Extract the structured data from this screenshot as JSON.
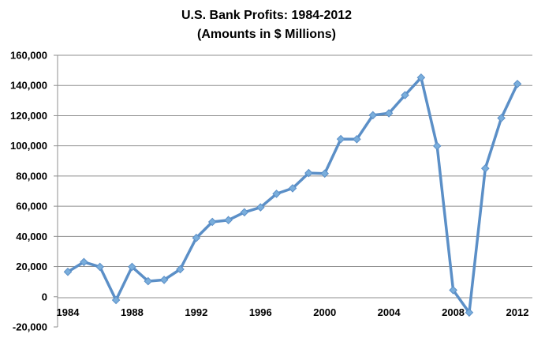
{
  "chart_data": {
    "type": "line",
    "title": "U.S. Bank Profits: 1984-2012",
    "subtitle": "(Amounts in $ Millions)",
    "xlabel": "",
    "ylabel": "",
    "x_tick_labels": [
      "1984",
      "1988",
      "1992",
      "1996",
      "2000",
      "2004",
      "2008",
      "2012"
    ],
    "y_tick_labels": [
      "160,000",
      "140,000",
      "120,000",
      "100,000",
      "80,000",
      "60,000",
      "40,000",
      "20,000",
      "0",
      "-20,000"
    ],
    "ylim": [
      -20000,
      160000
    ],
    "xlim": [
      1984,
      2012
    ],
    "grid": true,
    "legend": "none",
    "series": [
      {
        "color": "#5b8fc7",
        "marker_color": "#7aaedc",
        "x": [
          1984,
          1985,
          1986,
          1987,
          1988,
          1989,
          1990,
          1991,
          1992,
          1993,
          1994,
          1995,
          1996,
          1997,
          1998,
          1999,
          2000,
          2001,
          2002,
          2003,
          2004,
          2005,
          2006,
          2007,
          2008,
          2009,
          2010,
          2011,
          2012
        ],
        "values": [
          16500,
          23000,
          19800,
          -2200,
          19800,
          10300,
          11200,
          18200,
          39000,
          49600,
          50800,
          56000,
          59200,
          68200,
          71900,
          82000,
          81600,
          104500,
          104400,
          120300,
          121600,
          133600,
          145200,
          99900,
          4400,
          -10500,
          85000,
          118400,
          141000
        ]
      }
    ]
  }
}
